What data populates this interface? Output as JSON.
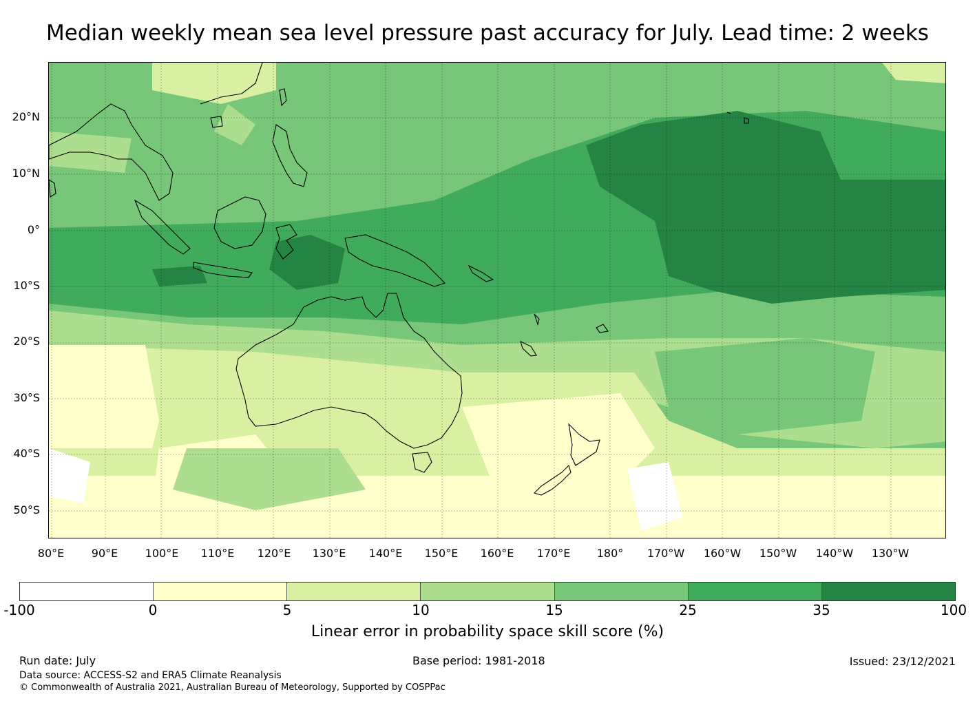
{
  "title": "Median weekly mean sea level pressure past accuracy for July. Lead time: 2 weeks",
  "map": {
    "lat_labels": [
      "20°N",
      "10°N",
      "0°",
      "10°S",
      "20°S",
      "30°S",
      "40°S",
      "50°S"
    ],
    "lon_labels": [
      "80°E",
      "90°E",
      "100°E",
      "110°E",
      "120°E",
      "130°E",
      "140°E",
      "150°E",
      "160°E",
      "170°E",
      "180°",
      "170°W",
      "160°W",
      "150°W",
      "140°W",
      "130°W"
    ],
    "colors": {
      "c0": "#ffffff",
      "c1": "#ffffcc",
      "c2": "#d9f0a3",
      "c3": "#addd8e",
      "c4": "#78c679",
      "c5": "#41ab5d",
      "c6": "#238443"
    }
  },
  "colorbar": {
    "ticks": [
      "-100",
      "0",
      "5",
      "10",
      "15",
      "25",
      "35",
      "100"
    ],
    "colors": [
      "#ffffff",
      "#ffffcc",
      "#d9f0a3",
      "#addd8e",
      "#78c679",
      "#41ab5d",
      "#238443"
    ],
    "label": "Linear error in probability space skill score (%)"
  },
  "footer": {
    "run_date": "Run date: July",
    "base_period": "Base period: 1981-2018",
    "issued": "Issued: 23/12/2021",
    "data_source": "Data source: ACCESS-S2 and ERA5 Climate Reanalysis",
    "copyright": "© Commonwealth of Australia 2021, Australian Bureau of Meteorology, Supported by COSPPac"
  }
}
